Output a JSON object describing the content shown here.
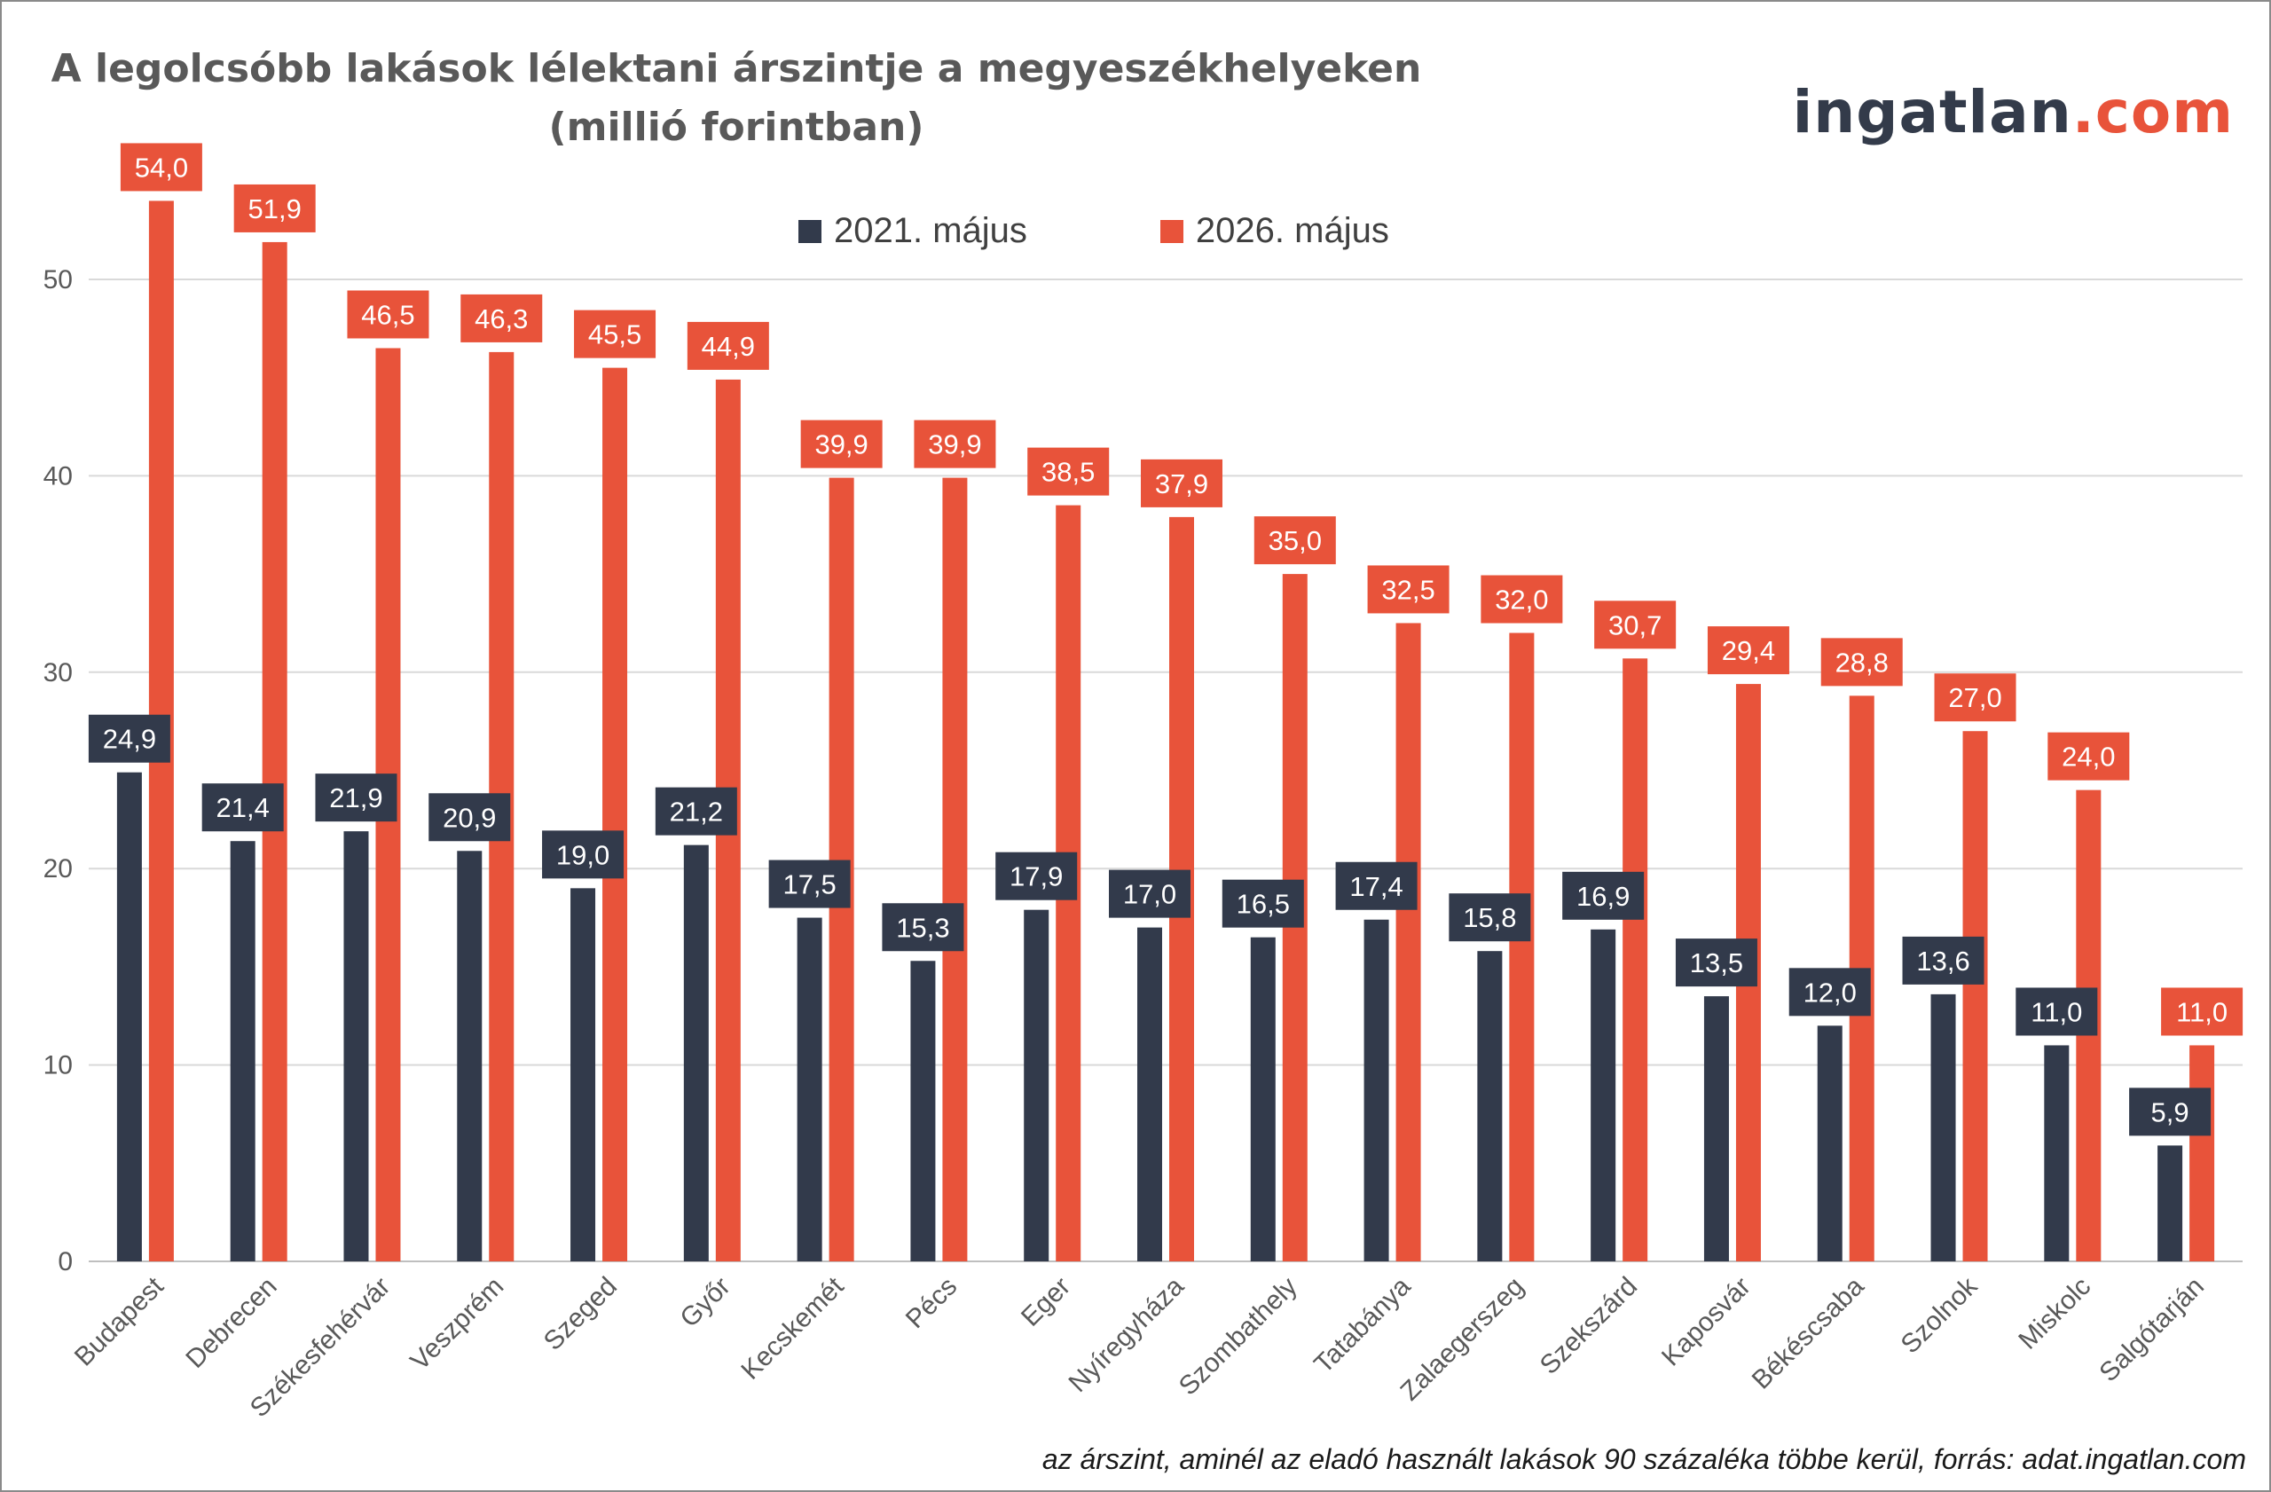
{
  "title": {
    "line1": "A legolcsóbb lakások lélektani árszintje a megyeszékhelyeken",
    "line2": "(millió forintban)"
  },
  "logo": {
    "brand": "ingatlan",
    "tld": ".com"
  },
  "footnote": "az árszint, aminél az eladó használt lakások 90 százaléka többe kerül, forrás: adat.ingatlan.com",
  "legend": [
    {
      "label": "2021. május",
      "color": "#323a4b"
    },
    {
      "label": "2026. május",
      "color": "#e8533a"
    }
  ],
  "chart_data": {
    "type": "bar",
    "title": "A legolcsóbb lakások lélektani árszintje a megyeszékhelyeken (millió forintban)",
    "categories": [
      "Budapest",
      "Debrecen",
      "Székesfehérvár",
      "Veszprém",
      "Szeged",
      "Győr",
      "Kecskemét",
      "Pécs",
      "Eger",
      "Nyíregyháza",
      "Szombathely",
      "Tatabánya",
      "Zalaegerszeg",
      "Szekszárd",
      "Kaposvár",
      "Békéscsaba",
      "Szolnok",
      "Miskolc",
      "Salgótarján"
    ],
    "series": [
      {
        "name": "2021. május",
        "color": "#323a4b",
        "values": [
          24.9,
          21.4,
          21.9,
          20.9,
          19.0,
          21.2,
          17.5,
          15.3,
          17.9,
          17.0,
          16.5,
          17.4,
          15.8,
          16.9,
          13.5,
          12.0,
          13.6,
          11.0,
          5.9
        ],
        "labels": [
          "24,9",
          "21,4",
          "21,9",
          "20,9",
          "19,0",
          "21,2",
          "17,5",
          "15,3",
          "17,9",
          "17,0",
          "16,5",
          "17,4",
          "15,8",
          "16,9",
          "13,5",
          "12,0",
          "13,6",
          "11,0",
          "5,9"
        ]
      },
      {
        "name": "2026. május",
        "color": "#e8533a",
        "values": [
          54.0,
          51.9,
          46.5,
          46.3,
          45.5,
          44.9,
          39.9,
          39.9,
          38.5,
          37.9,
          35.0,
          32.5,
          32.0,
          30.7,
          29.4,
          28.8,
          27.0,
          24.0,
          11.0
        ],
        "labels": [
          "54,0",
          "51,9",
          "46,5",
          "46,3",
          "45,5",
          "44,9",
          "39,9",
          "39,9",
          "38,5",
          "37,9",
          "35,0",
          "32,5",
          "32,0",
          "30,7",
          "29,4",
          "28,8",
          "27,0",
          "24,0",
          "11,0"
        ]
      }
    ],
    "yticks": [
      0,
      10,
      20,
      30,
      40,
      50
    ],
    "ytick_labels": [
      "0",
      "10",
      "20",
      "30",
      "40",
      "50"
    ],
    "ylim": [
      0,
      56
    ],
    "grid": true,
    "legend_position": "top-center"
  }
}
